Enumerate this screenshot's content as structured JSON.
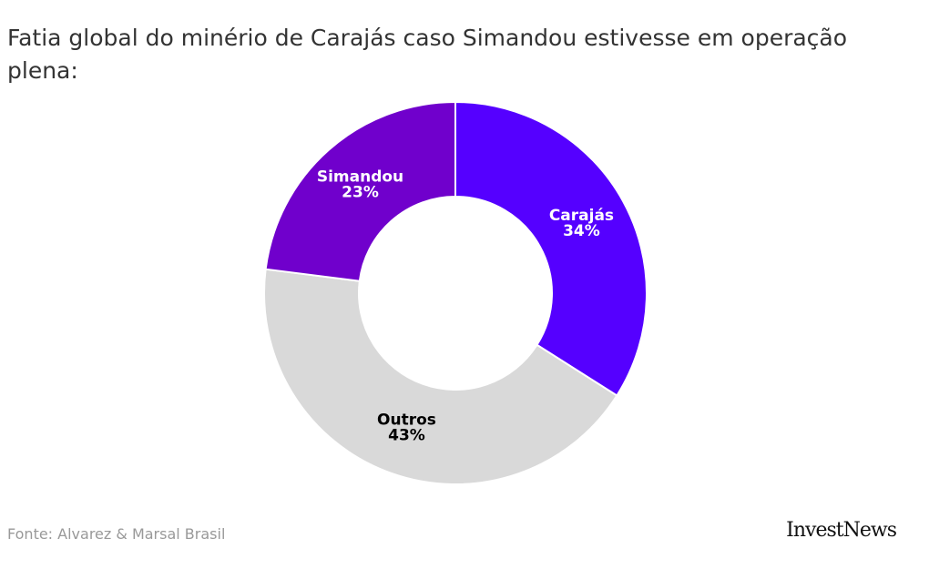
{
  "title": "Fatia global do minério de Carajás caso Simandou estivesse em operação plena:",
  "source": "Fonte: Alvarez & Marsal Brasil",
  "brand": "InvestNews",
  "chart_data": {
    "type": "pie",
    "donut": true,
    "slices": [
      {
        "label": "Carajás",
        "value": 34,
        "display": "34%",
        "color": "#5500ff",
        "label_color": "#ffffff"
      },
      {
        "label": "Outros",
        "value": 43,
        "display": "43%",
        "color": "#d9d9d9",
        "label_color": "#000000"
      },
      {
        "label": "Simandou",
        "value": 23,
        "display": "23%",
        "color": "#7000cc",
        "label_color": "#ffffff"
      }
    ]
  }
}
